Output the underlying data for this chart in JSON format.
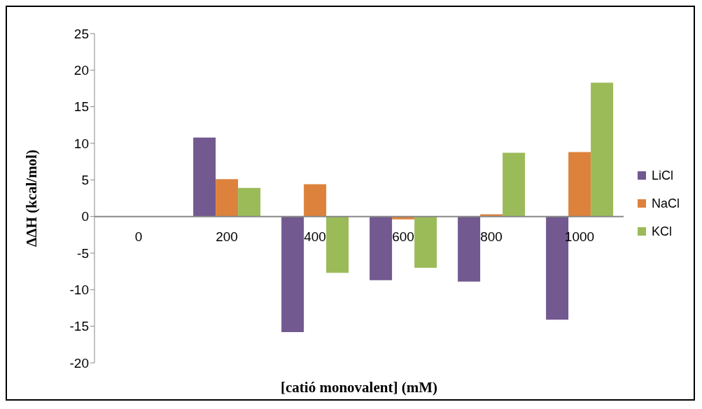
{
  "chart_data": {
    "type": "bar",
    "xlabel": "[catió monovalent] (mM)",
    "ylabel": "ΔΔH (kcal/mol)",
    "categories": [
      "0",
      "200",
      "400",
      "600",
      "800",
      "1000"
    ],
    "series": [
      {
        "name": "LiCl",
        "color": "#725990",
        "values": [
          0,
          10.8,
          -15.8,
          -8.7,
          -8.9,
          -14.1
        ]
      },
      {
        "name": "NaCl",
        "color": "#dd823c",
        "values": [
          0,
          5.1,
          4.4,
          -0.4,
          0.3,
          8.8
        ]
      },
      {
        "name": "KCl",
        "color": "#9bbb59",
        "values": [
          0,
          3.9,
          -7.7,
          -7.0,
          8.7,
          18.3
        ]
      }
    ],
    "ylim": [
      -20,
      25
    ],
    "yticks": [
      -20,
      -15,
      -10,
      -5,
      0,
      5,
      10,
      15,
      20,
      25
    ],
    "grid": false,
    "legend": "right"
  }
}
